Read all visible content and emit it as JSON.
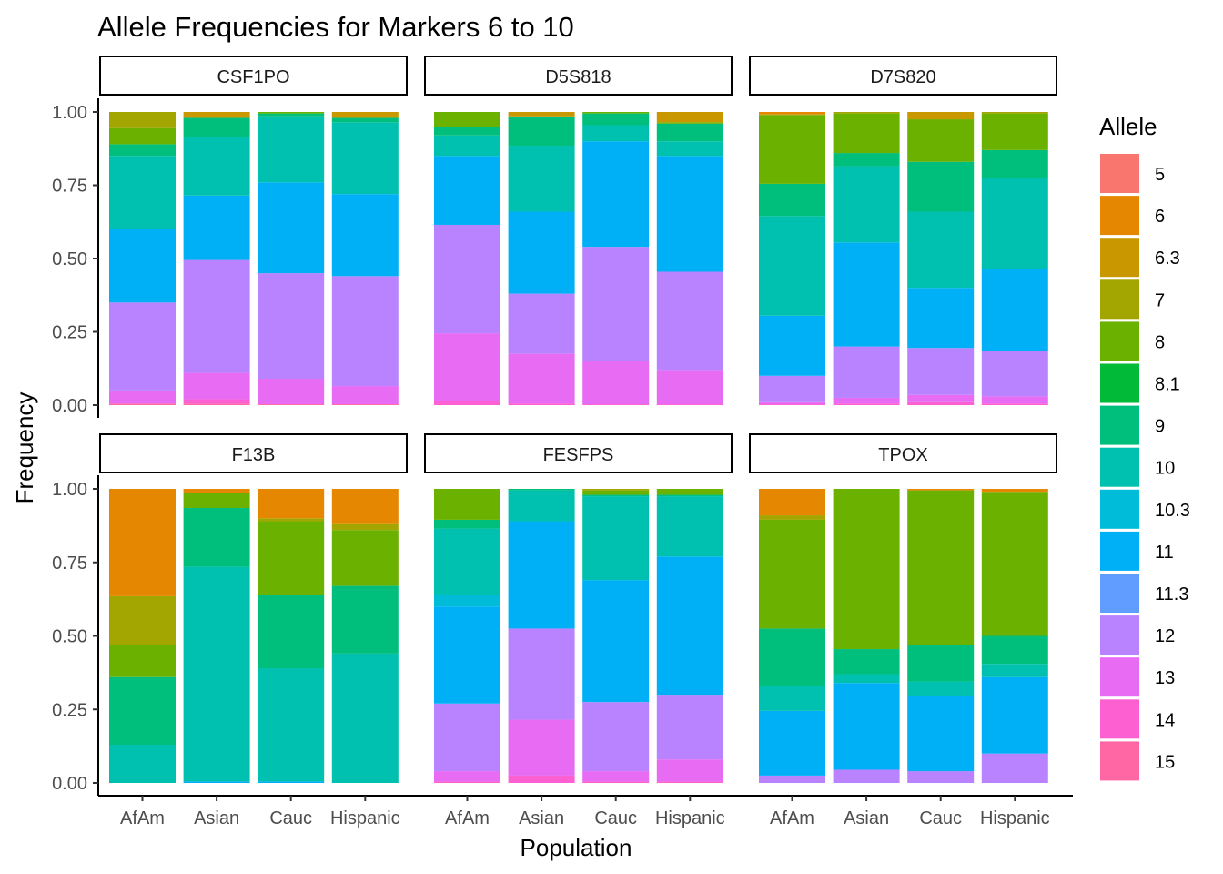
{
  "chart_data": {
    "type": "bar",
    "title": "Allele Frequencies for Markers 6 to 10",
    "xlabel": "Population",
    "ylabel": "Frequency",
    "ylim": [
      0,
      1
    ],
    "y_ticks": [
      "0.00",
      "0.25",
      "0.50",
      "0.75",
      "1.00"
    ],
    "y_tick_values": [
      0,
      0.25,
      0.5,
      0.75,
      1.0
    ],
    "categories": [
      "AfAm",
      "Asian",
      "Cauc",
      "Hispanic"
    ],
    "grid": false,
    "legend": {
      "title": "Allele",
      "position": "right",
      "items": [
        {
          "label": "5",
          "color": "#F8766D"
        },
        {
          "label": "6",
          "color": "#E58700"
        },
        {
          "label": "6.3",
          "color": "#C99800"
        },
        {
          "label": "7",
          "color": "#A3A500"
        },
        {
          "label": "8",
          "color": "#6BB100"
        },
        {
          "label": "8.1",
          "color": "#00BA38"
        },
        {
          "label": "9",
          "color": "#00BF7D"
        },
        {
          "label": "10",
          "color": "#00C0AF"
        },
        {
          "label": "10.3",
          "color": "#00BCD8"
        },
        {
          "label": "11",
          "color": "#00B0F6"
        },
        {
          "label": "11.3",
          "color": "#619CFF"
        },
        {
          "label": "12",
          "color": "#B983FF"
        },
        {
          "label": "13",
          "color": "#E76BF3"
        },
        {
          "label": "14",
          "color": "#FD61D1"
        },
        {
          "label": "15",
          "color": "#FF67A4"
        }
      ]
    },
    "panels": [
      {
        "name": "CSF1PO",
        "stacks": [
          [
            {
              "allele": "15",
              "value": 0.005
            },
            {
              "allele": "14",
              "value": 0.0
            },
            {
              "allele": "13",
              "value": 0.045
            },
            {
              "allele": "12",
              "value": 0.3
            },
            {
              "allele": "11",
              "value": 0.25
            },
            {
              "allele": "10",
              "value": 0.25
            },
            {
              "allele": "9",
              "value": 0.04
            },
            {
              "allele": "8",
              "value": 0.055
            },
            {
              "allele": "7",
              "value": 0.055
            }
          ],
          [
            {
              "allele": "15",
              "value": 0.005
            },
            {
              "allele": "14",
              "value": 0.015
            },
            {
              "allele": "13",
              "value": 0.09
            },
            {
              "allele": "12",
              "value": 0.385
            },
            {
              "allele": "11",
              "value": 0.22
            },
            {
              "allele": "10",
              "value": 0.2
            },
            {
              "allele": "9",
              "value": 0.065
            },
            {
              "allele": "8",
              "value": 0.0
            },
            {
              "allele": "7",
              "value": 0.0
            },
            {
              "allele": "6.3",
              "value": 0.02
            }
          ],
          [
            {
              "allele": "15",
              "value": 0.003
            },
            {
              "allele": "14",
              "value": 0.0
            },
            {
              "allele": "13",
              "value": 0.087
            },
            {
              "allele": "12",
              "value": 0.36
            },
            {
              "allele": "11",
              "value": 0.31
            },
            {
              "allele": "10",
              "value": 0.225
            },
            {
              "allele": "9",
              "value": 0.01
            },
            {
              "allele": "8",
              "value": 0.005
            }
          ],
          [
            {
              "allele": "15",
              "value": 0.003
            },
            {
              "allele": "14",
              "value": 0.0
            },
            {
              "allele": "13",
              "value": 0.062
            },
            {
              "allele": "12",
              "value": 0.375
            },
            {
              "allele": "11",
              "value": 0.28
            },
            {
              "allele": "10",
              "value": 0.245
            },
            {
              "allele": "9",
              "value": 0.015
            },
            {
              "allele": "8",
              "value": 0.0
            },
            {
              "allele": "6.3",
              "value": 0.02
            }
          ]
        ]
      },
      {
        "name": "D5S818",
        "stacks": [
          [
            {
              "allele": "15",
              "value": 0.0
            },
            {
              "allele": "14",
              "value": 0.015
            },
            {
              "allele": "13",
              "value": 0.23
            },
            {
              "allele": "12",
              "value": 0.37
            },
            {
              "allele": "11",
              "value": 0.235
            },
            {
              "allele": "10",
              "value": 0.07
            },
            {
              "allele": "9",
              "value": 0.03
            },
            {
              "allele": "8",
              "value": 0.05
            }
          ],
          [
            {
              "allele": "15",
              "value": 0.0
            },
            {
              "allele": "14",
              "value": 0.005
            },
            {
              "allele": "13",
              "value": 0.17
            },
            {
              "allele": "12",
              "value": 0.205
            },
            {
              "allele": "11",
              "value": 0.28
            },
            {
              "allele": "10",
              "value": 0.225
            },
            {
              "allele": "9",
              "value": 0.1
            },
            {
              "allele": "8",
              "value": 0.0
            },
            {
              "allele": "6.3",
              "value": 0.015
            }
          ],
          [
            {
              "allele": "15",
              "value": 0.0
            },
            {
              "allele": "14",
              "value": 0.003
            },
            {
              "allele": "13",
              "value": 0.147
            },
            {
              "allele": "12",
              "value": 0.39
            },
            {
              "allele": "11",
              "value": 0.36
            },
            {
              "allele": "10",
              "value": 0.055
            },
            {
              "allele": "9",
              "value": 0.04
            },
            {
              "allele": "8",
              "value": 0.005
            }
          ],
          [
            {
              "allele": "15",
              "value": 0.0
            },
            {
              "allele": "14",
              "value": 0.003
            },
            {
              "allele": "13",
              "value": 0.117
            },
            {
              "allele": "12",
              "value": 0.335
            },
            {
              "allele": "11",
              "value": 0.395
            },
            {
              "allele": "10",
              "value": 0.05
            },
            {
              "allele": "9",
              "value": 0.06
            },
            {
              "allele": "8",
              "value": 0.005
            },
            {
              "allele": "6.3",
              "value": 0.035
            }
          ]
        ]
      },
      {
        "name": "D7S820",
        "stacks": [
          [
            {
              "allele": "15",
              "value": 0.0
            },
            {
              "allele": "14",
              "value": 0.003
            },
            {
              "allele": "13",
              "value": 0.007
            },
            {
              "allele": "12",
              "value": 0.09
            },
            {
              "allele": "11",
              "value": 0.205
            },
            {
              "allele": "10",
              "value": 0.34
            },
            {
              "allele": "9",
              "value": 0.11
            },
            {
              "allele": "8",
              "value": 0.235
            },
            {
              "allele": "6.3",
              "value": 0.003
            },
            {
              "allele": "6",
              "value": 0.007
            }
          ],
          [
            {
              "allele": "15",
              "value": 0.0
            },
            {
              "allele": "14",
              "value": 0.005
            },
            {
              "allele": "13",
              "value": 0.02
            },
            {
              "allele": "12",
              "value": 0.175
            },
            {
              "allele": "11",
              "value": 0.355
            },
            {
              "allele": "10",
              "value": 0.26
            },
            {
              "allele": "9",
              "value": 0.045
            },
            {
              "allele": "8",
              "value": 0.135
            },
            {
              "allele": "7",
              "value": 0.005
            }
          ],
          [
            {
              "allele": "15",
              "value": 0.0
            },
            {
              "allele": "14",
              "value": 0.01
            },
            {
              "allele": "13",
              "value": 0.025
            },
            {
              "allele": "12",
              "value": 0.16
            },
            {
              "allele": "11",
              "value": 0.205
            },
            {
              "allele": "10",
              "value": 0.26
            },
            {
              "allele": "9",
              "value": 0.17
            },
            {
              "allele": "8",
              "value": 0.145
            },
            {
              "allele": "6.3",
              "value": 0.025
            }
          ],
          [
            {
              "allele": "15",
              "value": 0.0
            },
            {
              "allele": "14",
              "value": 0.005
            },
            {
              "allele": "13",
              "value": 0.025
            },
            {
              "allele": "12",
              "value": 0.155
            },
            {
              "allele": "11",
              "value": 0.28
            },
            {
              "allele": "10",
              "value": 0.31
            },
            {
              "allele": "9",
              "value": 0.095
            },
            {
              "allele": "8",
              "value": 0.125
            },
            {
              "allele": "7",
              "value": 0.005
            }
          ]
        ]
      },
      {
        "name": "F13B",
        "stacks": [
          [
            {
              "allele": "10",
              "value": 0.13
            },
            {
              "allele": "9",
              "value": 0.23
            },
            {
              "allele": "8",
              "value": 0.11
            },
            {
              "allele": "7",
              "value": 0.165
            },
            {
              "allele": "6",
              "value": 0.365
            }
          ],
          [
            {
              "allele": "11",
              "value": 0.005
            },
            {
              "allele": "10",
              "value": 0.73
            },
            {
              "allele": "9",
              "value": 0.2
            },
            {
              "allele": "8",
              "value": 0.05
            },
            {
              "allele": "6",
              "value": 0.015
            }
          ],
          [
            {
              "allele": "11",
              "value": 0.005
            },
            {
              "allele": "10",
              "value": 0.385
            },
            {
              "allele": "9",
              "value": 0.25
            },
            {
              "allele": "8",
              "value": 0.25
            },
            {
              "allele": "7",
              "value": 0.01
            },
            {
              "allele": "6",
              "value": 0.1
            }
          ],
          [
            {
              "allele": "10",
              "value": 0.44
            },
            {
              "allele": "9",
              "value": 0.23
            },
            {
              "allele": "8",
              "value": 0.19
            },
            {
              "allele": "7",
              "value": 0.02
            },
            {
              "allele": "6",
              "value": 0.12
            }
          ]
        ]
      },
      {
        "name": "FESFPS",
        "stacks": [
          [
            {
              "allele": "14",
              "value": 0.005
            },
            {
              "allele": "13",
              "value": 0.035
            },
            {
              "allele": "12",
              "value": 0.23
            },
            {
              "allele": "11",
              "value": 0.33
            },
            {
              "allele": "10.3",
              "value": 0.04
            },
            {
              "allele": "10",
              "value": 0.225
            },
            {
              "allele": "9",
              "value": 0.03
            },
            {
              "allele": "8",
              "value": 0.105
            }
          ],
          [
            {
              "allele": "14",
              "value": 0.025
            },
            {
              "allele": "13",
              "value": 0.19
            },
            {
              "allele": "12",
              "value": 0.31
            },
            {
              "allele": "11",
              "value": 0.365
            },
            {
              "allele": "10",
              "value": 0.105
            },
            {
              "allele": "9",
              "value": 0.005
            }
          ],
          [
            {
              "allele": "14",
              "value": 0.005
            },
            {
              "allele": "13",
              "value": 0.035
            },
            {
              "allele": "12",
              "value": 0.235
            },
            {
              "allele": "11",
              "value": 0.415
            },
            {
              "allele": "10",
              "value": 0.285
            },
            {
              "allele": "9",
              "value": 0.005
            },
            {
              "allele": "8",
              "value": 0.015
            },
            {
              "allele": "7",
              "value": 0.005
            }
          ],
          [
            {
              "allele": "14",
              "value": 0.005
            },
            {
              "allele": "13",
              "value": 0.075
            },
            {
              "allele": "12",
              "value": 0.22
            },
            {
              "allele": "11",
              "value": 0.47
            },
            {
              "allele": "10",
              "value": 0.205
            },
            {
              "allele": "9",
              "value": 0.005
            },
            {
              "allele": "8",
              "value": 0.02
            }
          ]
        ]
      },
      {
        "name": "TPOX",
        "stacks": [
          [
            {
              "allele": "12",
              "value": 0.025
            },
            {
              "allele": "11",
              "value": 0.22
            },
            {
              "allele": "10.3",
              "value": 0.0
            },
            {
              "allele": "10",
              "value": 0.085
            },
            {
              "allele": "9",
              "value": 0.195
            },
            {
              "allele": "8",
              "value": 0.37
            },
            {
              "allele": "7",
              "value": 0.015
            },
            {
              "allele": "6",
              "value": 0.09
            }
          ],
          [
            {
              "allele": "12",
              "value": 0.045
            },
            {
              "allele": "11",
              "value": 0.295
            },
            {
              "allele": "10",
              "value": 0.03
            },
            {
              "allele": "9",
              "value": 0.085
            },
            {
              "allele": "8",
              "value": 0.545
            }
          ],
          [
            {
              "allele": "12",
              "value": 0.04
            },
            {
              "allele": "11",
              "value": 0.255
            },
            {
              "allele": "10",
              "value": 0.05
            },
            {
              "allele": "9",
              "value": 0.125
            },
            {
              "allele": "8",
              "value": 0.525
            },
            {
              "allele": "6",
              "value": 0.005
            }
          ],
          [
            {
              "allele": "12",
              "value": 0.1
            },
            {
              "allele": "11",
              "value": 0.26
            },
            {
              "allele": "10",
              "value": 0.045
            },
            {
              "allele": "9",
              "value": 0.095
            },
            {
              "allele": "8",
              "value": 0.49
            },
            {
              "allele": "6",
              "value": 0.01
            }
          ]
        ]
      }
    ]
  }
}
